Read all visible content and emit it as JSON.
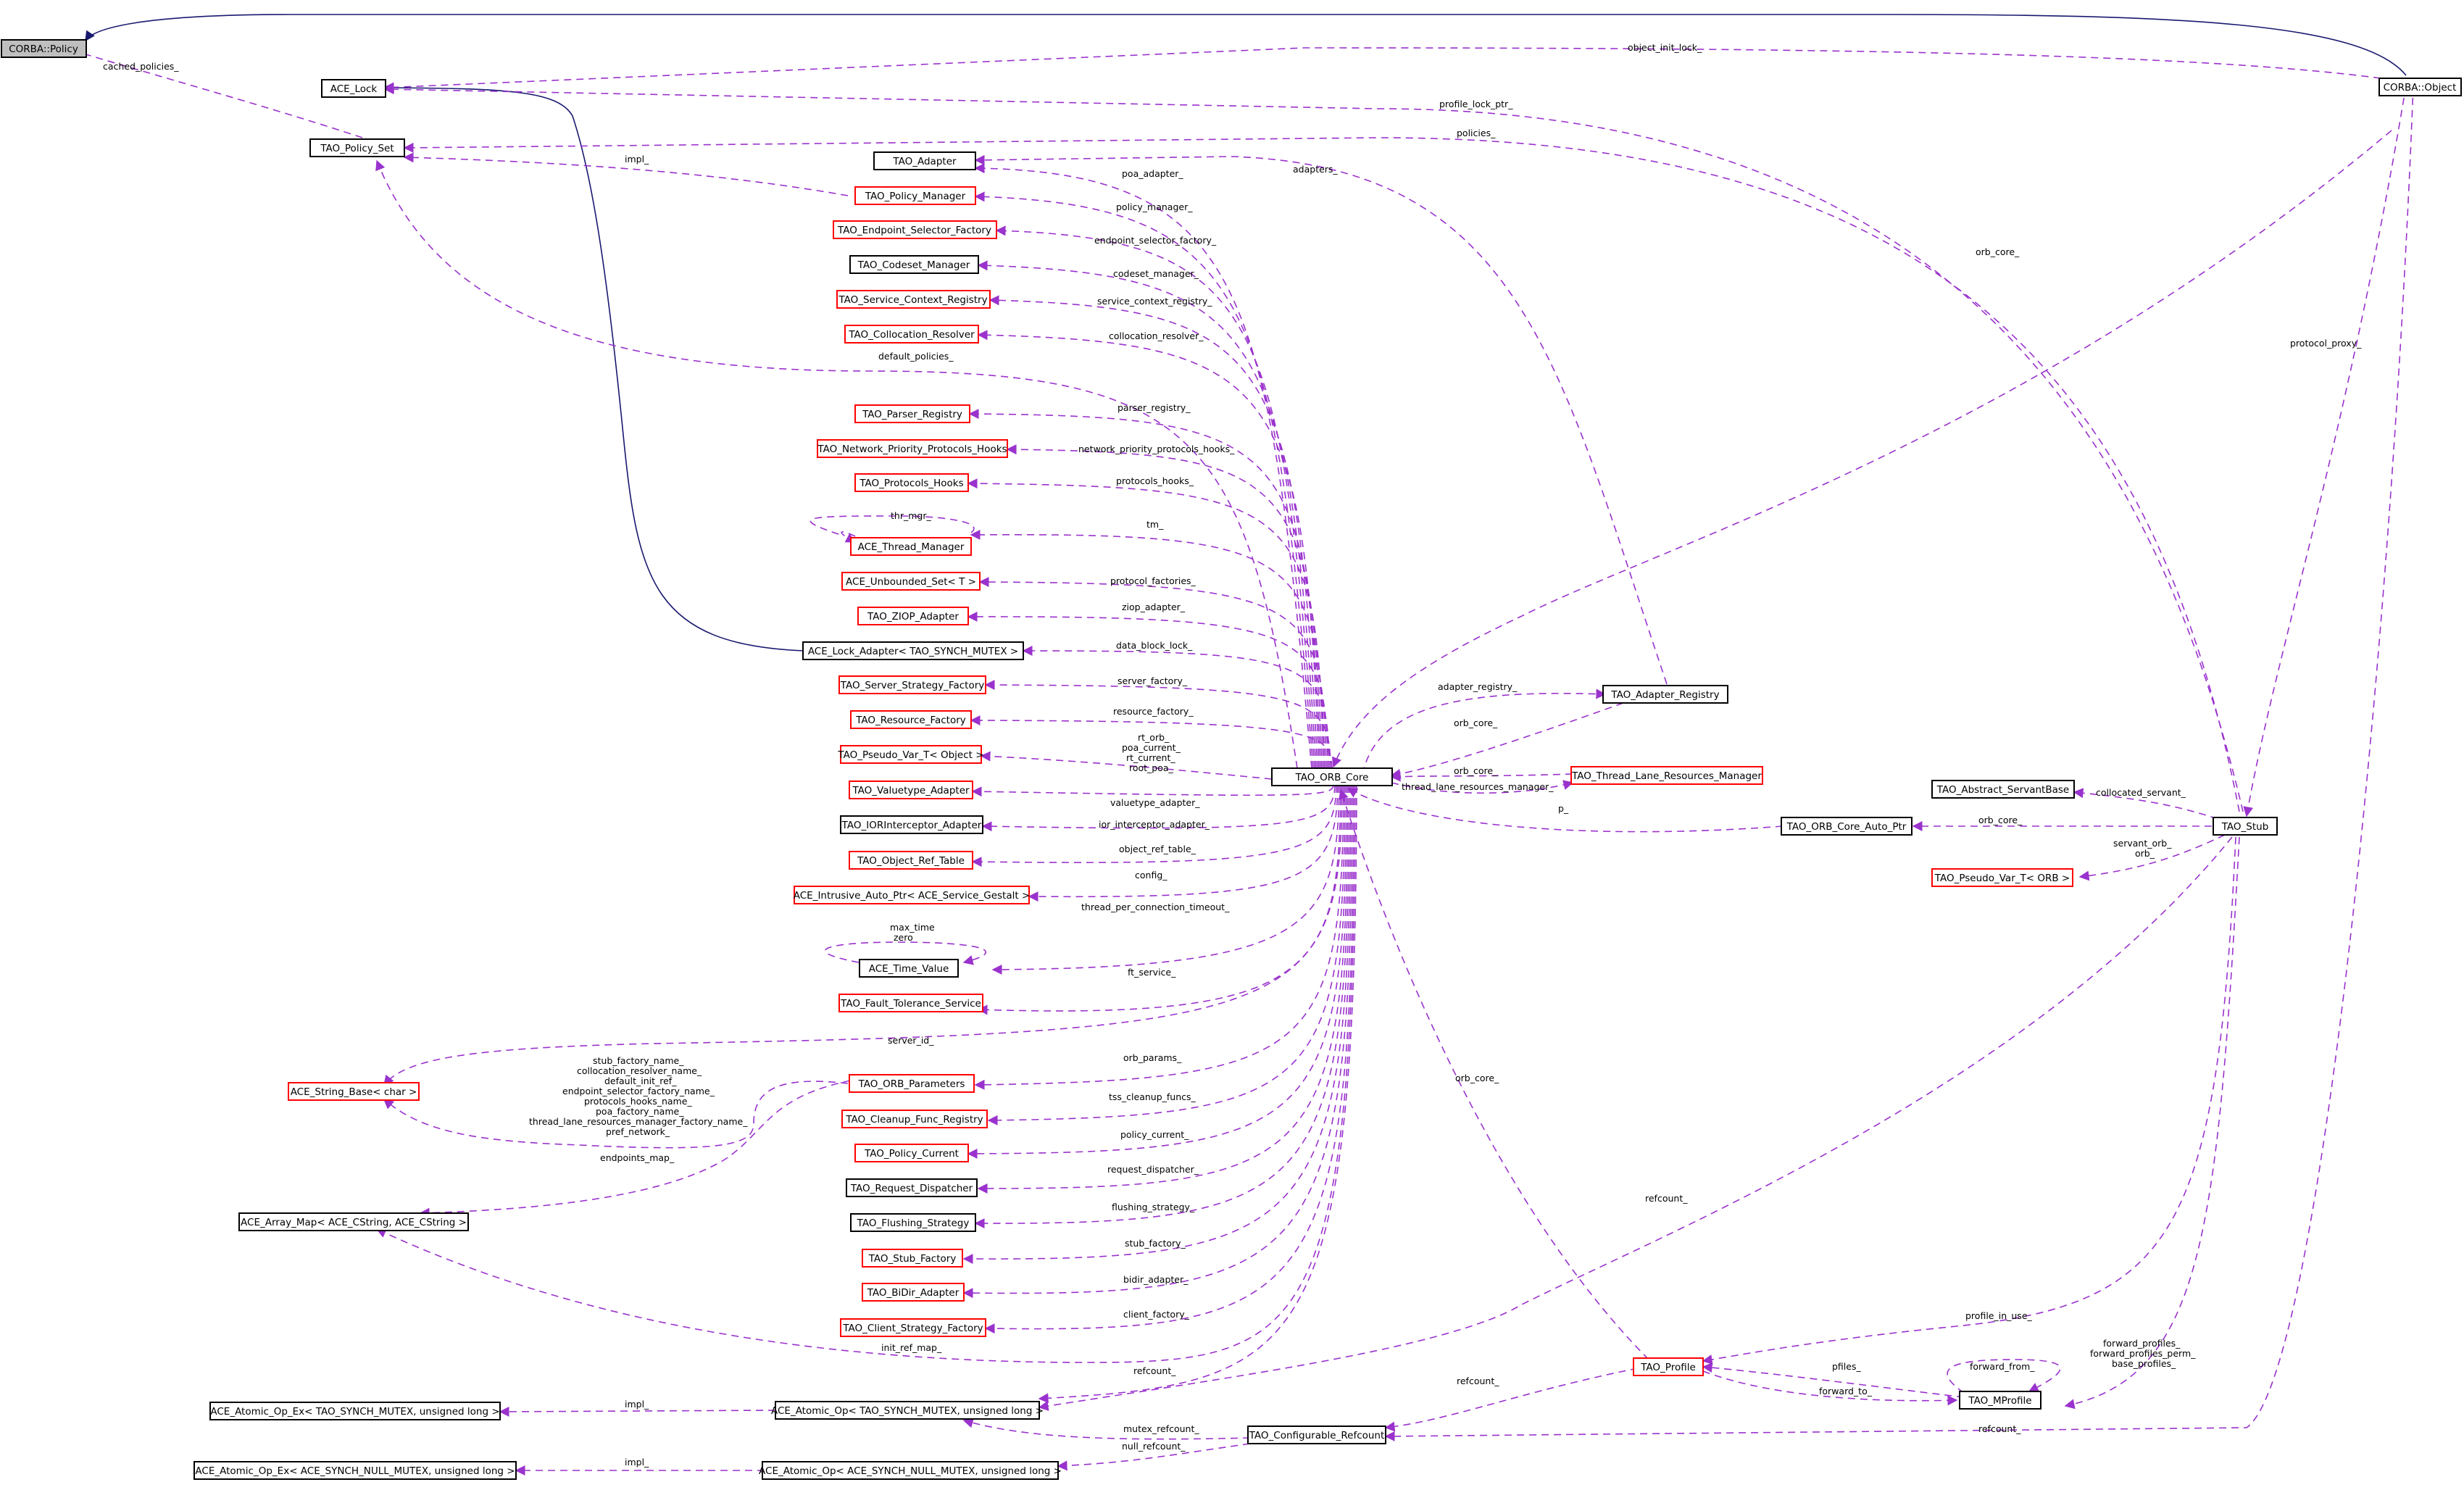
{
  "colors": {
    "usage_edge": "#9a32cd",
    "inheritance_edge": "#191970",
    "node_border": "#000000",
    "incomplete_node_border": "#ff0000",
    "selected_node_fill": "#bfbfbf"
  },
  "nodes": {
    "corba_policy": "CORBA::Policy",
    "ace_lock": "ACE_Lock",
    "tao_policy_set": "TAO_Policy_Set",
    "corba_object": "CORBA::Object",
    "tao_adapter": "TAO_Adapter",
    "tao_policy_manager": "TAO_Policy_Manager",
    "tao_endpoint_selector_factory": "TAO_Endpoint_Selector_Factory",
    "tao_codeset_manager": "TAO_Codeset_Manager",
    "tao_service_context_registry": "TAO_Service_Context_Registry",
    "tao_collocation_resolver": "TAO_Collocation_Resolver",
    "tao_parser_registry": "TAO_Parser_Registry",
    "tao_network_priority_protocols_hooks": "TAO_Network_Priority_Protocols_Hooks",
    "tao_protocols_hooks": "TAO_Protocols_Hooks",
    "ace_thread_manager": "ACE_Thread_Manager",
    "ace_unbounded_set": "ACE_Unbounded_Set< T >",
    "tao_ziop_adapter": "TAO_ZIOP_Adapter",
    "ace_lock_adapter": "ACE_Lock_Adapter< TAO_SYNCH_MUTEX >",
    "tao_server_strategy_factory": "TAO_Server_Strategy_Factory",
    "tao_resource_factory": "TAO_Resource_Factory",
    "tao_pseudo_var_object": "TAO_Pseudo_Var_T< Object >",
    "tao_valuetype_adapter": "TAO_Valuetype_Adapter",
    "tao_iorinterceptor_adapter": "TAO_IORInterceptor_Adapter",
    "tao_object_ref_table": "TAO_Object_Ref_Table",
    "ace_intrusive_auto_ptr": "ACE_Intrusive_Auto_Ptr< ACE_Service_Gestalt >",
    "ace_time_value": "ACE_Time_Value",
    "tao_fault_tolerance_service": "TAO_Fault_Tolerance_Service",
    "ace_string_base": "ACE_String_Base< char >",
    "tao_orb_parameters": "TAO_ORB_Parameters",
    "tao_cleanup_func_registry": "TAO_Cleanup_Func_Registry",
    "tao_policy_current": "TAO_Policy_Current",
    "tao_request_dispatcher": "TAO_Request_Dispatcher",
    "ace_array_map": "ACE_Array_Map< ACE_CString, ACE_CString >",
    "tao_flushing_strategy": "TAO_Flushing_Strategy",
    "tao_stub_factory": "TAO_Stub_Factory",
    "tao_bidir_adapter": "TAO_BiDir_Adapter",
    "tao_client_strategy_factory": "TAO_Client_Strategy_Factory",
    "ace_atomic_op_ex_synch": "ACE_Atomic_Op_Ex< TAO_SYNCH_MUTEX, unsigned long >",
    "ace_atomic_op_synch": "ACE_Atomic_Op< TAO_SYNCH_MUTEX, unsigned long >",
    "ace_atomic_op_ex_null": "ACE_Atomic_Op_Ex< ACE_SYNCH_NULL_MUTEX, unsigned long >",
    "ace_atomic_op_null": "ACE_Atomic_Op< ACE_SYNCH_NULL_MUTEX, unsigned long >",
    "tao_configurable_refcount": "TAO_Configurable_Refcount",
    "tao_orb_core": "TAO_ORB_Core",
    "tao_adapter_registry": "TAO_Adapter_Registry",
    "tao_thread_lane_resources_manager": "TAO_Thread_Lane_Resources_Manager",
    "tao_abstract_servantbase": "TAO_Abstract_ServantBase",
    "tao_orb_core_auto_ptr": "TAO_ORB_Core_Auto_Ptr",
    "tao_stub": "TAO_Stub",
    "tao_pseudo_var_orb": "TAO_Pseudo_Var_T< ORB >",
    "tao_profile": "TAO_Profile",
    "tao_mprofile": "TAO_MProfile"
  },
  "edge_labels": {
    "cached_policies": "cached_policies_",
    "object_init_lock": "object_init_lock_",
    "profile_lock_ptr": "profile_lock_ptr_",
    "policies": "policies_",
    "impl_policy": "impl_",
    "adapters": "adapters_",
    "poa_adapter": "poa_adapter_",
    "policy_manager": "policy_manager_",
    "endpoint_selector_factory": "endpoint_selector_factory_",
    "codeset_manager": "codeset_manager_",
    "service_context_registry": "service_context_registry_",
    "collocation_resolver": "collocation_resolver_",
    "default_policies": "default_policies_",
    "parser_registry": "parser_registry_",
    "network_priority_protocols_hooks": "network_priority_protocols_hooks_",
    "protocols_hooks": "protocols_hooks_",
    "thr_mgr": "thr_mgr_",
    "tm": "tm_",
    "protocol_factories": "protocol_factories_",
    "ziop_adapter": "ziop_adapter_",
    "data_block_lock": "data_block_lock_",
    "server_factory": "server_factory_",
    "resource_factory": "resource_factory_",
    "pseudo_vars": [
      "rt_orb_",
      "poa_current_",
      "rt_current_",
      "root_poa_"
    ],
    "valuetype_adapter": "valuetype_adapter_",
    "ior_interceptor_adapter": "ior_interceptor_adapter_",
    "object_ref_table": "object_ref_table_",
    "config": "config_",
    "thread_per_connection_timeout": "thread_per_connection_timeout_",
    "time_vals": [
      "max_time",
      "zero"
    ],
    "ft_service": "ft_service_",
    "server_id": "server_id_",
    "string_members": [
      "stub_factory_name_",
      "collocation_resolver_name_",
      "default_init_ref_",
      "endpoint_selector_factory_name_",
      "protocols_hooks_name_",
      "poa_factory_name_",
      "thread_lane_resources_manager_factory_name_",
      "pref_network_"
    ],
    "orb_params": "orb_params_",
    "tss_cleanup_funcs": "tss_cleanup_funcs_",
    "policy_current": "policy_current_",
    "endpoints_map": "endpoints_map_",
    "request_dispatcher": "request_dispatcher_",
    "flushing_strategy": "flushing_strategy_",
    "stub_factory": "stub_factory_",
    "bidir_adapter": "bidir_adapter_",
    "client_factory": "client_factory_",
    "init_ref_map": "init_ref_map_",
    "refcount_a": "refcount_",
    "impl_atomic": "impl_",
    "mutex_refcount": "mutex_refcount_",
    "null_refcount": "null_refcount_",
    "impl_null": "impl_",
    "orb_core_top": "orb_core_",
    "protocol_proxy": "protocol_proxy_",
    "adapter_registry": "adapter_registry_",
    "orb_core_ar": "orb_core_",
    "orb_core_tlrm": "orb_core_",
    "thread_lane_resources_manager": "thread_lane_resources_manager_",
    "p": "p_",
    "orb_core_stub": "orb_core_",
    "collocated_servant": "collocated_servant_",
    "servant_orb": [
      "servant_orb_",
      "orb_"
    ],
    "orb_core_profile": "orb_core_",
    "refcount_stub": "refcount_",
    "refcount_profile": "refcount_",
    "profile_in_use": "profile_in_use_",
    "pfiles": "pfiles_",
    "forward_to": "forward_to_",
    "forward_from": "forward_from_",
    "forward_profiles": [
      "forward_profiles_",
      "forward_profiles_perm_",
      "base_profiles_"
    ],
    "refcount_bottom": "refcount_"
  }
}
